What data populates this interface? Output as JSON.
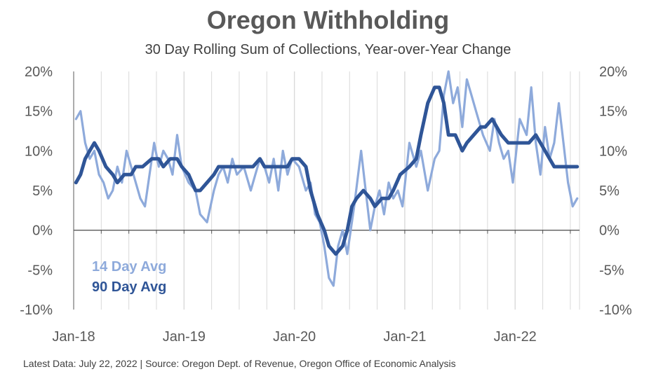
{
  "title": "Oregon Withholding",
  "subtitle": "30 Day Rolling Sum of Collections, Year-over-Year Change",
  "footer": "Latest Data: July 22, 2022 | Source: Oregon Dept. of Revenue, Oregon Office of Economic Analysis",
  "colors": {
    "series_14": "#8eaadb",
    "series_90": "#2f5597",
    "axis": "#595959",
    "grid": "#d9d9d9"
  },
  "chart_data": {
    "type": "line",
    "title": "Oregon Withholding",
    "subtitle": "30 Day Rolling Sum of Collections, Year-over-Year Change",
    "x_tick_labels": [
      "Jan-18",
      "Jan-19",
      "Jan-20",
      "Jan-21",
      "Jan-22"
    ],
    "x_tick_values": [
      "2018-01",
      "2019-01",
      "2020-01",
      "2021-01",
      "2022-01"
    ],
    "y_tick_labels": [
      "20%",
      "15%",
      "10%",
      "5%",
      "0%",
      "-5%",
      "-10%"
    ],
    "y_tick_values": [
      20,
      15,
      10,
      5,
      0,
      -5,
      -10
    ],
    "ylim": [
      -10,
      20
    ],
    "xlim": [
      "2018-01",
      "2022-08"
    ],
    "grid": "vertical",
    "legend_position": "bottom-left",
    "series": [
      {
        "name": "14 Day Avg",
        "x": [
          "2018-01",
          "2018-01",
          "2018-02",
          "2018-02",
          "2018-03",
          "2018-03",
          "2018-04",
          "2018-04",
          "2018-05",
          "2018-05",
          "2018-06",
          "2018-06",
          "2018-07",
          "2018-08",
          "2018-08",
          "2018-09",
          "2018-09",
          "2018-10",
          "2018-10",
          "2018-11",
          "2018-11",
          "2018-12",
          "2018-12",
          "2019-01",
          "2019-02",
          "2019-02",
          "2019-03",
          "2019-04",
          "2019-04",
          "2019-05",
          "2019-05",
          "2019-06",
          "2019-06",
          "2019-07",
          "2019-08",
          "2019-08",
          "2019-09",
          "2019-09",
          "2019-10",
          "2019-10",
          "2019-11",
          "2019-11",
          "2019-12",
          "2019-12",
          "2020-01",
          "2020-02",
          "2020-02",
          "2020-03",
          "2020-03",
          "2020-04",
          "2020-04",
          "2020-05",
          "2020-05",
          "2020-06",
          "2020-06",
          "2020-07",
          "2020-08",
          "2020-08",
          "2020-09",
          "2020-09",
          "2020-10",
          "2020-10",
          "2020-11",
          "2020-11",
          "2020-12",
          "2020-12",
          "2021-01",
          "2021-02",
          "2021-02",
          "2021-03",
          "2021-04",
          "2021-04",
          "2021-05",
          "2021-05",
          "2021-06",
          "2021-06",
          "2021-07",
          "2021-07",
          "2021-08",
          "2021-08",
          "2021-09",
          "2021-10",
          "2021-10",
          "2021-11",
          "2021-11",
          "2021-12",
          "2021-12",
          "2022-01",
          "2022-02",
          "2022-02",
          "2022-03",
          "2022-03",
          "2022-04",
          "2022-04",
          "2022-05",
          "2022-05",
          "2022-06",
          "2022-06",
          "2022-07",
          "2022-07"
        ],
        "y": [
          14,
          15,
          11,
          9,
          10,
          7,
          6,
          4,
          5,
          8,
          6,
          10,
          7,
          4,
          3,
          7,
          11,
          8,
          10,
          9,
          7,
          12,
          8,
          6,
          5,
          2,
          1,
          5,
          7,
          8,
          6,
          9,
          7,
          8,
          5,
          7,
          9,
          8,
          6,
          9,
          5,
          10,
          7,
          9,
          8,
          5,
          6,
          2,
          1,
          -2,
          -6,
          -7,
          -2,
          0,
          -3,
          3,
          10,
          5,
          0,
          3,
          5,
          2,
          6,
          4,
          5,
          3,
          11,
          8,
          10,
          5,
          9,
          10,
          17,
          20,
          16,
          18,
          13,
          19,
          17,
          15,
          12,
          10,
          14,
          11,
          9,
          10,
          6,
          14,
          12,
          18,
          11,
          7,
          13,
          9,
          11,
          16,
          11,
          6,
          3,
          4
        ]
      },
      {
        "name": "90 Day Avg",
        "x": [
          "2018-01",
          "2018-01",
          "2018-02",
          "2018-02",
          "2018-03",
          "2018-03",
          "2018-04",
          "2018-05",
          "2018-05",
          "2018-06",
          "2018-07",
          "2018-07",
          "2018-08",
          "2018-09",
          "2018-10",
          "2018-10",
          "2018-11",
          "2018-12",
          "2018-12",
          "2019-01",
          "2019-02",
          "2019-02",
          "2019-03",
          "2019-04",
          "2019-04",
          "2019-05",
          "2019-05",
          "2019-06",
          "2019-07",
          "2019-07",
          "2019-08",
          "2019-09",
          "2019-09",
          "2019-10",
          "2019-11",
          "2019-12",
          "2019-12",
          "2020-01",
          "2020-02",
          "2020-02",
          "2020-03",
          "2020-04",
          "2020-04",
          "2020-05",
          "2020-06",
          "2020-06",
          "2020-07",
          "2020-07",
          "2020-08",
          "2020-09",
          "2020-09",
          "2020-10",
          "2020-11",
          "2020-11",
          "2020-12",
          "2021-01",
          "2021-02",
          "2021-02",
          "2021-03",
          "2021-04",
          "2021-04",
          "2021-05",
          "2021-05",
          "2021-06",
          "2021-07",
          "2021-07",
          "2021-08",
          "2021-09",
          "2021-09",
          "2021-10",
          "2021-11",
          "2021-12",
          "2021-12",
          "2022-01",
          "2022-02",
          "2022-03",
          "2022-03",
          "2022-04",
          "2022-04",
          "2022-05",
          "2022-05",
          "2022-06",
          "2022-07",
          "2022-07"
        ],
        "y": [
          6,
          7,
          9,
          10,
          11,
          10,
          8,
          7,
          6,
          7,
          7,
          8,
          8,
          9,
          9,
          8,
          9,
          9,
          8,
          7,
          5,
          5,
          6,
          7,
          8,
          8,
          8,
          8,
          8,
          8,
          8,
          9,
          8,
          8,
          8,
          8,
          9,
          9,
          8,
          5,
          2,
          0,
          -2,
          -3,
          -2,
          0,
          3,
          4,
          5,
          4,
          3,
          4,
          4,
          5,
          7,
          8,
          9,
          12,
          16,
          18,
          18,
          16,
          12,
          12,
          10,
          11,
          12,
          13,
          13,
          14,
          12,
          11,
          11,
          11,
          11,
          12,
          11,
          10,
          9,
          8,
          8,
          8,
          8,
          8
        ]
      }
    ]
  }
}
